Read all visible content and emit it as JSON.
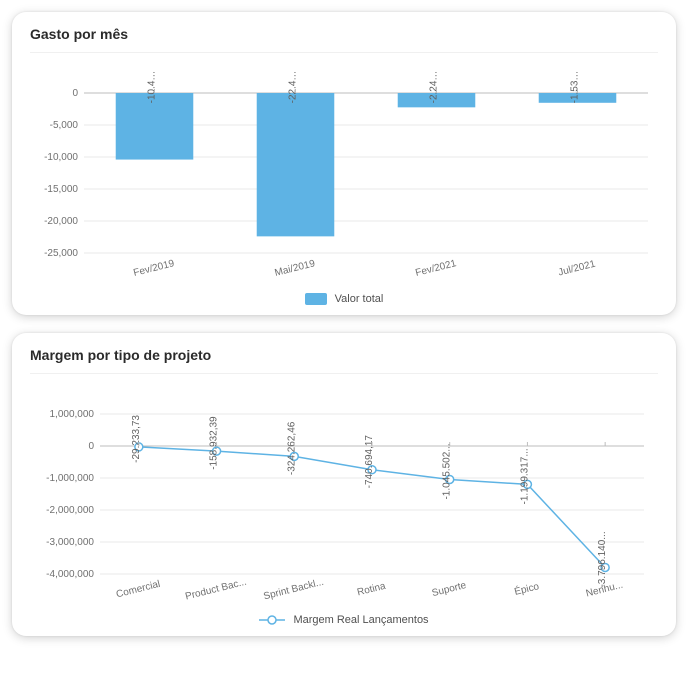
{
  "chart1": {
    "type": "bar",
    "title": "Gasto por mês",
    "legend_label": "Valor total",
    "bar_color": "#5eb3e4",
    "background_color": "#ffffff",
    "grid_color": "#e8e8e8",
    "axis_color": "#bdbdbd",
    "label_color": "#707070",
    "data_label_color": "#606060",
    "label_fontsize": 10,
    "title_fontsize": 14,
    "categories": [
      "Fev/2019",
      "Mai/2019",
      "Fev/2021",
      "Jul/2021"
    ],
    "values": [
      -10400,
      -22400,
      -2240,
      -1530
    ],
    "data_labels": [
      "-10.4…",
      "-22.4…",
      "-2.24…",
      "-1.53…"
    ],
    "ylim": [
      -25000,
      0
    ],
    "ytick_step": 5000,
    "ytick_labels": [
      "0",
      "-5,000",
      "-10,000",
      "-15,000",
      "-20,000",
      "-25,000"
    ],
    "bar_width_ratio": 0.55
  },
  "chart2": {
    "type": "line",
    "title": "Margem por tipo de projeto",
    "legend_label": "Margem Real Lançamentos",
    "line_color": "#5eb3e4",
    "marker_fill": "#ffffff",
    "marker_stroke": "#5eb3e4",
    "marker_radius": 4,
    "line_width": 1.5,
    "background_color": "#ffffff",
    "grid_color": "#e8e8e8",
    "axis_color": "#bdbdbd",
    "label_color": "#707070",
    "data_label_color": "#606060",
    "label_fontsize": 10,
    "title_fontsize": 14,
    "categories": [
      "Comercial",
      "Product Bac...",
      "Sprint Backl...",
      "Rotina",
      "Suporte",
      "Épico",
      "Nenhu..."
    ],
    "values": [
      -29233.73,
      -158932.39,
      -324262.46,
      -740694.17,
      -1045502,
      -1199317,
      -3796140
    ],
    "data_labels": [
      "-29.233,73",
      "-158.932,39",
      "-324.262,46",
      "-740.694,17",
      "-1.045.502...",
      "-1.199.317...",
      "-3.796.140..."
    ],
    "ylim": [
      -4000000,
      1000000
    ],
    "ytick_step": 1000000,
    "ytick_labels": [
      "1,000,000",
      "0",
      "-1,000,000",
      "-2,000,000",
      "-3,000,000",
      "-4,000,000"
    ]
  }
}
